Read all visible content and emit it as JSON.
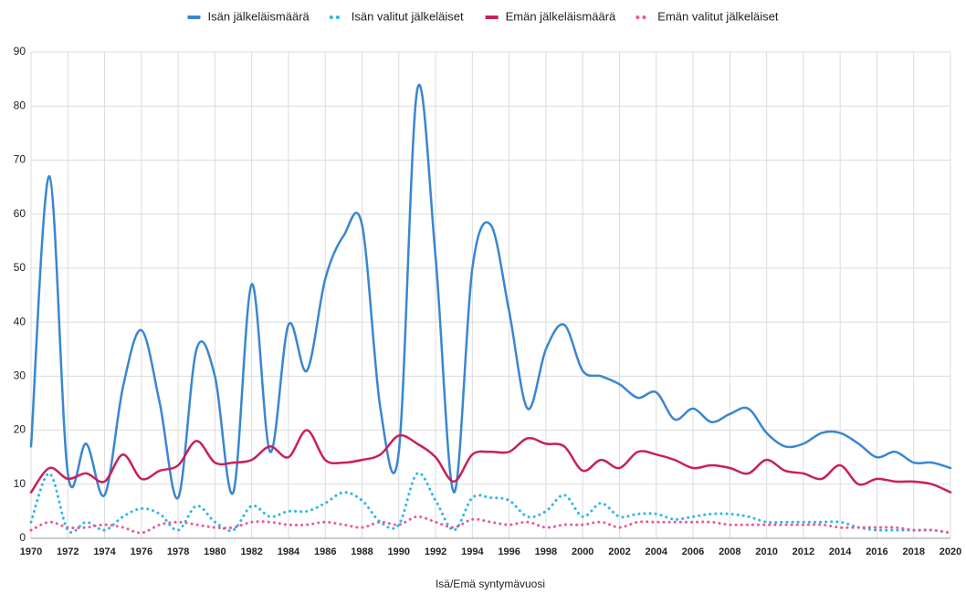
{
  "chart_data": {
    "type": "line",
    "x_label": "Isä/Emä syntymävuosi",
    "x": [
      1970,
      1971,
      1972,
      1973,
      1974,
      1975,
      1976,
      1977,
      1978,
      1979,
      1980,
      1981,
      1982,
      1983,
      1984,
      1985,
      1986,
      1987,
      1988,
      1989,
      1990,
      1991,
      1992,
      1993,
      1994,
      1995,
      1996,
      1997,
      1998,
      1999,
      2000,
      2001,
      2002,
      2003,
      2004,
      2005,
      2006,
      2007,
      2008,
      2009,
      2010,
      2011,
      2012,
      2013,
      2014,
      2015,
      2016,
      2017,
      2018,
      2019,
      2020
    ],
    "series": [
      {
        "name": "Isän jälkeläismäärä",
        "color": "#3a86d0",
        "dash": "solid",
        "values": [
          17,
          67,
          12,
          17.5,
          8,
          28,
          38.5,
          25,
          7.5,
          35,
          30,
          8.5,
          47,
          16,
          39.5,
          31,
          48,
          56,
          58,
          24,
          16,
          83,
          52,
          8.5,
          50,
          58,
          42,
          24,
          35,
          39.5,
          31,
          30,
          28.5,
          26,
          27,
          22,
          24,
          21.5,
          23,
          24,
          19.5,
          17,
          17.5,
          19.5,
          19.5,
          17.5,
          15,
          16,
          14,
          14,
          13
        ]
      },
      {
        "name": "Isän valitut jälkeläiset",
        "color": "#2bb8e8",
        "dash": "dotted",
        "values": [
          3,
          12,
          1.5,
          3,
          1.5,
          4,
          5.5,
          4.5,
          1.5,
          6,
          3,
          1.5,
          6,
          4,
          5,
          5,
          6.5,
          8.5,
          7,
          3,
          2.5,
          12,
          7,
          1.5,
          7.5,
          7.5,
          7,
          4,
          5,
          8,
          4,
          6.5,
          4,
          4.5,
          4.5,
          3.5,
          4,
          4.5,
          4.5,
          4,
          3,
          3,
          3,
          3,
          3,
          2,
          1.5,
          1.5,
          1.5,
          1.5,
          1
        ]
      },
      {
        "name": "Emän jälkeläismäärä",
        "color": "#c8205a",
        "dash": "solid",
        "values": [
          8.5,
          13,
          11,
          12,
          10.5,
          15.5,
          11,
          12.5,
          13.5,
          18,
          14,
          14,
          14.5,
          17,
          15,
          20,
          14.5,
          14,
          14.5,
          15.5,
          19,
          17.5,
          15,
          10.5,
          15.5,
          16,
          16,
          18.5,
          17.5,
          17,
          12.5,
          14.5,
          13,
          16,
          15.5,
          14.5,
          13,
          13.5,
          13,
          12,
          14.5,
          12.5,
          12,
          11,
          13.5,
          10,
          11,
          10.5,
          10.5,
          10,
          8.5
        ]
      },
      {
        "name": "Emän valitut jälkeläiset",
        "color": "#e85a9a",
        "dash": "dotted",
        "values": [
          1.5,
          3,
          2,
          2,
          2.5,
          2,
          1,
          2.5,
          3,
          2.5,
          2,
          2,
          3,
          3,
          2.5,
          2.5,
          3,
          2.5,
          2,
          3,
          2.5,
          4,
          3,
          2,
          3.5,
          3,
          2.5,
          3,
          2,
          2.5,
          2.5,
          3,
          2,
          3,
          3,
          3,
          3,
          3,
          2.5,
          2.5,
          2.5,
          2.5,
          2.5,
          2.5,
          2,
          2,
          2,
          2,
          1.5,
          1.5,
          1
        ]
      }
    ],
    "xlim": [
      1970,
      2020
    ],
    "xticks": [
      1970,
      1972,
      1974,
      1976,
      1978,
      1980,
      1982,
      1984,
      1986,
      1988,
      1990,
      1992,
      1994,
      1996,
      1998,
      2000,
      2002,
      2004,
      2006,
      2008,
      2010,
      2012,
      2014,
      2016,
      2018,
      2020
    ],
    "ylim": [
      0,
      90
    ],
    "yticks": [
      0,
      10,
      20,
      30,
      40,
      50,
      60,
      70,
      80,
      90
    ],
    "grid": true,
    "legend": "top"
  }
}
